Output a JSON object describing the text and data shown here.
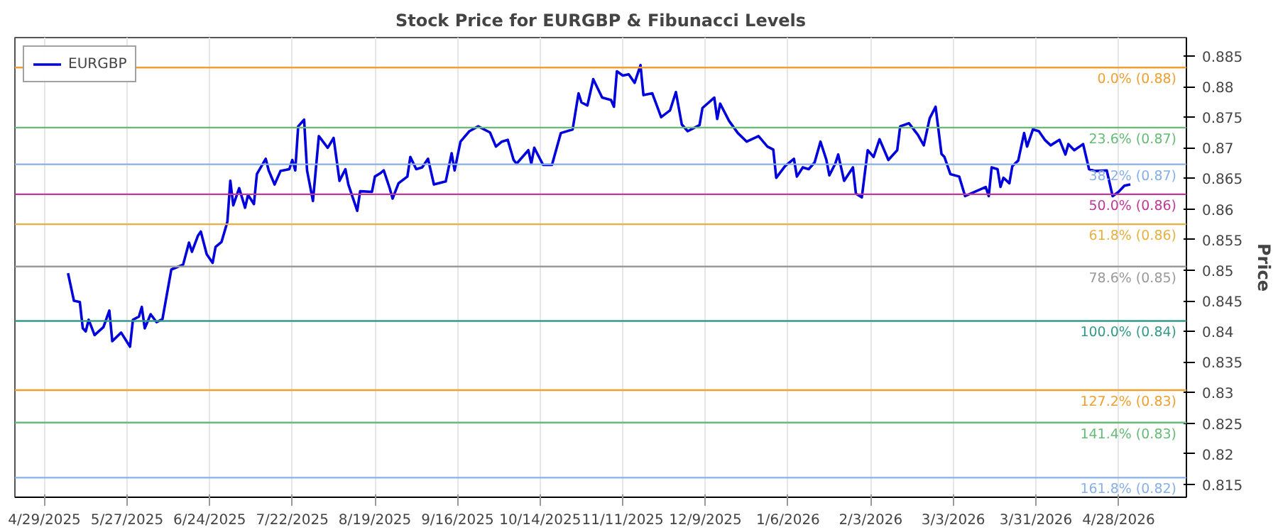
{
  "chart_data": {
    "type": "line",
    "title": "Stock Price for EURGBP & Fibunacci Levels",
    "ylabel": "Price",
    "x": [
      "2025-05-07",
      "2025-05-09",
      "2025-05-11",
      "2025-05-12",
      "2025-05-13",
      "2025-05-14",
      "2025-05-16",
      "2025-05-19",
      "2025-05-21",
      "2025-05-22",
      "2025-05-25",
      "2025-05-28",
      "2025-05-29",
      "2025-05-31",
      "2025-06-01",
      "2025-06-02",
      "2025-06-04",
      "2025-06-06",
      "2025-06-08",
      "2025-06-11",
      "2025-06-15",
      "2025-06-17",
      "2025-06-18",
      "2025-06-20",
      "2025-06-21",
      "2025-06-23",
      "2025-06-25",
      "2025-06-26",
      "2025-06-28",
      "2025-06-30",
      "2025-07-01",
      "2025-07-02",
      "2025-07-04",
      "2025-07-06",
      "2025-07-07",
      "2025-07-09",
      "2025-07-10",
      "2025-07-13",
      "2025-07-14",
      "2025-07-16",
      "2025-07-18",
      "2025-07-21",
      "2025-07-22",
      "2025-07-23",
      "2025-07-24",
      "2025-07-26",
      "2025-07-27",
      "2025-07-29",
      "2025-07-31",
      "2025-08-03",
      "2025-08-05",
      "2025-08-07",
      "2025-08-09",
      "2025-08-10",
      "2025-08-13",
      "2025-08-14",
      "2025-08-18",
      "2025-08-19",
      "2025-08-21",
      "2025-08-22",
      "2025-08-24",
      "2025-08-25",
      "2025-08-27",
      "2025-08-30",
      "2025-08-31",
      "2025-09-02",
      "2025-09-04",
      "2025-09-06",
      "2025-09-08",
      "2025-09-12",
      "2025-09-14",
      "2025-09-15",
      "2025-09-17",
      "2025-09-20",
      "2025-09-23",
      "2025-09-27",
      "2025-09-29",
      "2025-10-01",
      "2025-10-03",
      "2025-10-05",
      "2025-10-06",
      "2025-10-10",
      "2025-10-11",
      "2025-10-12",
      "2025-10-15",
      "2025-10-18",
      "2025-10-21",
      "2025-10-25",
      "2025-10-27",
      "2025-10-28",
      "2025-10-30",
      "2025-11-01",
      "2025-11-04",
      "2025-11-07",
      "2025-11-08",
      "2025-11-09",
      "2025-11-11",
      "2025-11-13",
      "2025-11-15",
      "2025-11-17",
      "2025-11-18",
      "2025-11-21",
      "2025-11-24",
      "2025-11-27",
      "2025-11-29",
      "2025-12-01",
      "2025-12-03",
      "2025-12-07",
      "2025-12-08",
      "2025-12-12",
      "2025-12-13",
      "2025-12-14",
      "2025-12-17",
      "2025-12-20",
      "2025-12-23",
      "2025-12-27",
      "2025-12-30",
      "2026-01-01",
      "2026-01-02",
      "2026-01-05",
      "2026-01-08",
      "2026-01-09",
      "2026-01-11",
      "2026-01-13",
      "2026-01-15",
      "2026-01-17",
      "2026-01-19",
      "2026-01-20",
      "2026-01-22",
      "2026-01-23",
      "2026-01-25",
      "2026-01-28",
      "2026-01-29",
      "2026-01-31",
      "2026-02-02",
      "2026-02-04",
      "2026-02-06",
      "2026-02-09",
      "2026-02-12",
      "2026-02-13",
      "2026-02-16",
      "2026-02-19",
      "2026-02-21",
      "2026-02-23",
      "2026-02-25",
      "2026-02-27",
      "2026-02-28",
      "2026-03-02",
      "2026-03-05",
      "2026-03-07",
      "2026-03-14",
      "2026-03-15",
      "2026-03-16",
      "2026-03-18",
      "2026-03-19",
      "2026-03-20",
      "2026-03-22",
      "2026-03-23",
      "2026-03-25",
      "2026-03-27",
      "2026-03-28",
      "2026-03-30",
      "2026-04-01",
      "2026-04-03",
      "2026-04-05",
      "2026-04-08",
      "2026-04-10",
      "2026-04-11",
      "2026-04-13",
      "2026-04-16",
      "2026-04-18",
      "2026-04-20",
      "2026-04-24",
      "2026-04-26",
      "2026-04-28",
      "2026-04-30",
      "2026-05-02"
    ],
    "series": [
      {
        "name": "EURGBP",
        "color": "#0000dd",
        "values": [
          0.8495,
          0.845,
          0.8448,
          0.8405,
          0.84,
          0.8419,
          0.8394,
          0.8407,
          0.8434,
          0.8384,
          0.8398,
          0.8375,
          0.8419,
          0.8424,
          0.844,
          0.8405,
          0.8428,
          0.8415,
          0.842,
          0.8501,
          0.8509,
          0.8545,
          0.853,
          0.8556,
          0.8563,
          0.8526,
          0.8512,
          0.8538,
          0.8546,
          0.8579,
          0.8646,
          0.8606,
          0.8634,
          0.8602,
          0.8623,
          0.8608,
          0.8657,
          0.8682,
          0.8663,
          0.864,
          0.8662,
          0.8665,
          0.868,
          0.8663,
          0.8735,
          0.8746,
          0.8663,
          0.8613,
          0.8719,
          0.87,
          0.8716,
          0.8646,
          0.8665,
          0.864,
          0.8597,
          0.8629,
          0.8628,
          0.8653,
          0.8659,
          0.8663,
          0.8634,
          0.8617,
          0.8642,
          0.8653,
          0.8685,
          0.8665,
          0.8668,
          0.8682,
          0.864,
          0.8645,
          0.8691,
          0.8663,
          0.871,
          0.8727,
          0.8735,
          0.8725,
          0.8702,
          0.871,
          0.8713,
          0.868,
          0.8674,
          0.8696,
          0.8674,
          0.87,
          0.8672,
          0.8672,
          0.8724,
          0.873,
          0.8789,
          0.8774,
          0.8769,
          0.8812,
          0.8782,
          0.8778,
          0.8767,
          0.8825,
          0.8818,
          0.882,
          0.8806,
          0.8835,
          0.8786,
          0.8789,
          0.875,
          0.8761,
          0.8791,
          0.8738,
          0.8727,
          0.8737,
          0.8765,
          0.8782,
          0.8747,
          0.8772,
          0.8744,
          0.8724,
          0.871,
          0.8719,
          0.8702,
          0.8697,
          0.8651,
          0.867,
          0.8682,
          0.8653,
          0.8668,
          0.8665,
          0.8676,
          0.871,
          0.868,
          0.8655,
          0.8674,
          0.8689,
          0.8646,
          0.8668,
          0.8625,
          0.8619,
          0.8696,
          0.8685,
          0.8714,
          0.868,
          0.8696,
          0.8735,
          0.874,
          0.8721,
          0.8704,
          0.8748,
          0.8767,
          0.869,
          0.8685,
          0.8657,
          0.8653,
          0.8621,
          0.8636,
          0.8621,
          0.8668,
          0.8665,
          0.8636,
          0.8651,
          0.8642,
          0.867,
          0.8679,
          0.8724,
          0.8702,
          0.873,
          0.8727,
          0.8713,
          0.8704,
          0.8713,
          0.8689,
          0.8706,
          0.8696,
          0.8706,
          0.8665,
          0.8662,
          0.8663,
          0.8621,
          0.8628,
          0.8638,
          0.864
        ]
      }
    ],
    "xlim": [
      "2025-04-19",
      "2026-05-21"
    ],
    "xticks": [
      {
        "value": "2025-04-29",
        "label": "4/29/2025"
      },
      {
        "value": "2025-05-27",
        "label": "5/27/2025"
      },
      {
        "value": "2025-06-24",
        "label": "6/24/2025"
      },
      {
        "value": "2025-07-22",
        "label": "7/22/2025"
      },
      {
        "value": "2025-08-19",
        "label": "8/19/2025"
      },
      {
        "value": "2025-09-16",
        "label": "9/16/2025"
      },
      {
        "value": "2025-10-14",
        "label": "10/14/2025"
      },
      {
        "value": "2025-11-11",
        "label": "11/11/2025"
      },
      {
        "value": "2025-12-09",
        "label": "12/9/2025"
      },
      {
        "value": "2026-01-06",
        "label": "1/6/2026"
      },
      {
        "value": "2026-02-03",
        "label": "2/3/2026"
      },
      {
        "value": "2026-03-03",
        "label": "3/3/2026"
      },
      {
        "value": "2026-03-31",
        "label": "3/31/2026"
      },
      {
        "value": "2026-04-28",
        "label": "4/28/2026"
      }
    ],
    "ylim": [
      0.8129,
      0.888
    ],
    "yticks": [
      0.815,
      0.82,
      0.825,
      0.83,
      0.835,
      0.84,
      0.845,
      0.85,
      0.855,
      0.86,
      0.865,
      0.87,
      0.875,
      0.88,
      0.885
    ],
    "ref_lines": [
      {
        "axis": "y",
        "value": 0.8831,
        "label": "0.0% (0.88)",
        "color": "#f0a030"
      },
      {
        "axis": "y",
        "value": 0.8733,
        "label": "23.6% (0.87)",
        "color": "#66bb77"
      },
      {
        "axis": "y",
        "value": 0.8673,
        "label": "38.2% (0.87)",
        "color": "#88b0e8"
      },
      {
        "axis": "y",
        "value": 0.8624,
        "label": "50.0% (0.86)",
        "color": "#c03898"
      },
      {
        "axis": "y",
        "value": 0.8575,
        "label": "61.8% (0.86)",
        "color": "#e8b040"
      },
      {
        "axis": "y",
        "value": 0.8506,
        "label": "78.6% (0.85)",
        "color": "#999999"
      },
      {
        "axis": "y",
        "value": 0.8417,
        "label": "100.0% (0.84)",
        "color": "#339988"
      },
      {
        "axis": "y",
        "value": 0.8304,
        "label": "127.2% (0.83)",
        "color": "#f0a030"
      },
      {
        "axis": "y",
        "value": 0.8251,
        "label": "141.4% (0.83)",
        "color": "#66bb77"
      },
      {
        "axis": "y",
        "value": 0.8161,
        "label": "161.8% (0.82)",
        "color": "#88b0e8"
      }
    ],
    "grid": "x",
    "legend": "top left",
    "marker": "none",
    "line_style": "solid"
  }
}
